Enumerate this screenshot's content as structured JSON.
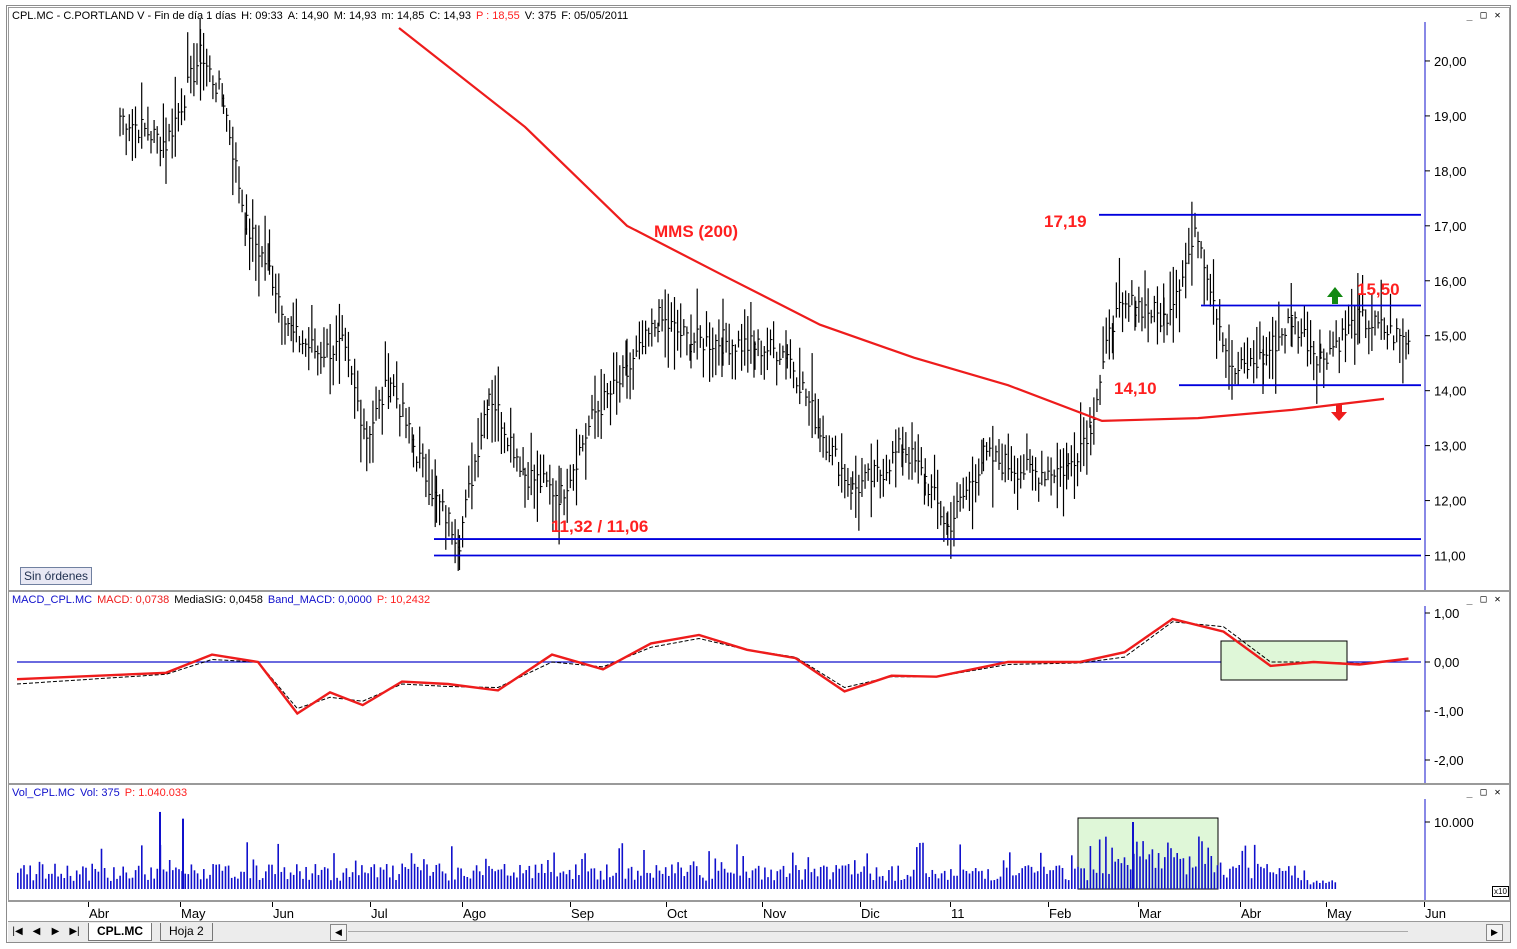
{
  "price_pane": {
    "header": {
      "symbol": "CPL.MC - C.PORTLAND V - Fin de día 1 días",
      "h": "H: 09:33",
      "a": "A: 14,90",
      "m": "M: 14,93",
      "mm": "m: 14,85",
      "c": "C: 14,93",
      "p": "P : 18,55",
      "v": "V: 375",
      "f": "F: 05/05/2011"
    },
    "window_controls": [
      "_",
      "□",
      "✕"
    ],
    "sin_ordenes": "Sin órdenes"
  },
  "macd_pane": {
    "header": {
      "name": "MACD_CPL.MC",
      "macd": "MACD: 0,0738",
      "mediasig": "MediaSIG: 0,0458",
      "band": "Band_MACD: 0,0000",
      "p": "P: 10,2432"
    },
    "window_controls": [
      "_",
      "□",
      "✕"
    ]
  },
  "vol_pane": {
    "header": {
      "name": "Vol_CPL.MC",
      "vol": "Vol: 375",
      "p": "P: 1.040.033"
    },
    "window_controls": [
      "_",
      "□",
      "✕"
    ],
    "scale_note": "x10"
  },
  "x_axis_labels": [
    "Abr",
    "May",
    "Jun",
    "Jul",
    "Ago",
    "Sep",
    "Oct",
    "Nov",
    "Dic",
    "11",
    "Feb",
    "Mar",
    "Abr",
    "May",
    "Jun"
  ],
  "bottom_bar": {
    "tabs": [
      "CPL.MC",
      "Hoja 2"
    ],
    "nav": [
      "|◀",
      "◀",
      "▶",
      "▶|"
    ]
  },
  "colors": {
    "price_bar": "#000000",
    "mms_line": "#ee1c1c",
    "level_line": "#0000dd",
    "annotation_text": "#ff2020",
    "macd_line": "#ee1c1c",
    "signal_line": "#000000",
    "volume_bar": "#1010cc",
    "highlight_fill": "#dff7d8",
    "arrow_up": "#118811",
    "arrow_down": "#ee1c1c"
  },
  "chart_data": [
    {
      "type": "bar",
      "subtype": "ohlc",
      "x_range": [
        "Abr 2010",
        "Jun 2011"
      ],
      "ylim": [
        10.5,
        20.8
      ],
      "yticks": [
        "20,00",
        "19,00",
        "18,00",
        "17,00",
        "16,00",
        "15,00",
        "14,00",
        "13,00",
        "12,00",
        "11,00"
      ],
      "close_path": [
        [
          "Abr",
          19.0
        ],
        [
          "Abr",
          18.5
        ],
        [
          "May",
          20.1
        ],
        [
          "May",
          19.3
        ],
        [
          "May",
          17.0
        ],
        [
          "May",
          16.2
        ],
        [
          "Jun",
          15.0
        ],
        [
          "Jun",
          14.7
        ],
        [
          "Jun",
          14.8
        ],
        [
          "Jun",
          13.2
        ],
        [
          "Jul",
          14.2
        ],
        [
          "Jul",
          13.0
        ],
        [
          "Jul",
          12.0
        ],
        [
          "Jul",
          11.3
        ],
        [
          "Ago",
          14.0
        ],
        [
          "Ago",
          12.5
        ],
        [
          "Ago",
          12.1
        ],
        [
          "Sep",
          13.6
        ],
        [
          "Sep",
          14.3
        ],
        [
          "Sep",
          15.3
        ],
        [
          "Oct",
          14.9
        ],
        [
          "Oct",
          14.9
        ],
        [
          "Oct",
          14.8
        ],
        [
          "Nov",
          14.7
        ],
        [
          "Nov",
          13.3
        ],
        [
          "Nov",
          12.2
        ],
        [
          "Dic",
          12.5
        ],
        [
          "Dic",
          13.0
        ],
        [
          "Dic",
          12.4
        ],
        [
          "Dic",
          11.5
        ],
        [
          "11",
          12.8
        ],
        [
          "11",
          12.5
        ],
        [
          "Feb",
          12.6
        ],
        [
          "Feb",
          13.4
        ],
        [
          "Feb",
          15.3
        ],
        [
          "Feb",
          15.6
        ],
        [
          "Mar",
          15.3
        ],
        [
          "Mar",
          16.9
        ],
        [
          "Mar",
          14.3
        ],
        [
          "Abr",
          14.6
        ],
        [
          "Abr",
          15.3
        ],
        [
          "Abr",
          14.6
        ],
        [
          "May",
          15.3
        ],
        [
          "May",
          14.9
        ]
      ],
      "overlay_series": [
        {
          "name": "MMS (200)",
          "values": [
            [
              "Jul",
              20.6
            ],
            [
              "Ago",
              18.8
            ],
            [
              "Sep",
              17.0
            ],
            [
              "Oct",
              16.1
            ],
            [
              "Nov",
              15.2
            ],
            [
              "Dic",
              14.6
            ],
            [
              "11",
              14.1
            ],
            [
              "Feb",
              13.45
            ],
            [
              "Mar",
              13.5
            ],
            [
              "Abr",
              13.65
            ],
            [
              "May",
              13.85
            ]
          ]
        }
      ],
      "levels": [
        {
          "label": "17,19",
          "value": 17.2,
          "from": "Feb",
          "to": "Jun"
        },
        {
          "label": "15,50",
          "value": 15.55,
          "from": "Mar",
          "to": "Jun"
        },
        {
          "label": "14,10",
          "value": 14.1,
          "from": "Mar",
          "to": "Jun"
        },
        {
          "label": "11,32 / 11,06",
          "value": 11.3,
          "from": "Jul",
          "to": "Jun"
        },
        {
          "label": "",
          "value": 11.0,
          "from": "Jul",
          "to": "Jun"
        }
      ],
      "annotations": [
        "MMS (200)",
        "17,19",
        "15,50",
        "14,10",
        "11,32 / 11,06"
      ]
    },
    {
      "type": "line",
      "ylim": [
        -2.5,
        1.1
      ],
      "yticks": [
        "1,00",
        "0,00",
        "-1,00",
        "-2,00"
      ],
      "series": [
        {
          "name": "MACD",
          "values": [
            [
              "Abr",
              -0.35
            ],
            [
              "Abr",
              -0.22
            ],
            [
              "May",
              0.15
            ],
            [
              "May",
              0.0
            ],
            [
              "Jun",
              -1.05
            ],
            [
              "Jun",
              -0.62
            ],
            [
              "Jun",
              -0.88
            ],
            [
              "Jul",
              -0.4
            ],
            [
              "Jul",
              -0.45
            ],
            [
              "Ago",
              -0.58
            ],
            [
              "Ago",
              0.15
            ],
            [
              "Sep",
              -0.15
            ],
            [
              "Sep",
              0.38
            ],
            [
              "Oct",
              0.55
            ],
            [
              "Oct",
              0.25
            ],
            [
              "Nov",
              0.08
            ],
            [
              "Nov",
              -0.6
            ],
            [
              "Dic",
              -0.28
            ],
            [
              "Dic",
              -0.3
            ],
            [
              "11",
              0.0
            ],
            [
              "Feb",
              0.0
            ],
            [
              "Feb",
              0.2
            ],
            [
              "Mar",
              0.88
            ],
            [
              "Mar",
              0.62
            ],
            [
              "Abr",
              -0.08
            ],
            [
              "Abr",
              0.0
            ],
            [
              "May",
              -0.05
            ],
            [
              "May",
              0.07
            ]
          ]
        },
        {
          "name": "MediaSIG",
          "values": [
            [
              "Abr",
              -0.45
            ],
            [
              "Abr",
              -0.25
            ],
            [
              "May",
              0.05
            ],
            [
              "May",
              0.0
            ],
            [
              "Jun",
              -0.95
            ],
            [
              "Jun",
              -0.72
            ],
            [
              "Jun",
              -0.8
            ],
            [
              "Jul",
              -0.45
            ],
            [
              "Jul",
              -0.5
            ],
            [
              "Ago",
              -0.52
            ],
            [
              "Ago",
              0.0
            ],
            [
              "Sep",
              -0.1
            ],
            [
              "Sep",
              0.3
            ],
            [
              "Oct",
              0.48
            ],
            [
              "Oct",
              0.25
            ],
            [
              "Nov",
              0.1
            ],
            [
              "Nov",
              -0.52
            ],
            [
              "Dic",
              -0.3
            ],
            [
              "Dic",
              -0.3
            ],
            [
              "11",
              -0.05
            ],
            [
              "Feb",
              -0.02
            ],
            [
              "Feb",
              0.1
            ],
            [
              "Mar",
              0.82
            ],
            [
              "Mar",
              0.72
            ],
            [
              "Abr",
              0.0
            ],
            [
              "Abr",
              0.0
            ],
            [
              "May",
              -0.03
            ],
            [
              "May",
              0.05
            ]
          ]
        },
        {
          "name": "Band_MACD",
          "values": [
            [
              "Abr",
              0.0
            ],
            [
              "Jun",
              0.0
            ]
          ]
        }
      ]
    },
    {
      "type": "bar",
      "ylim": [
        0,
        15000
      ],
      "yticks": [
        "10.000"
      ],
      "spikes": [
        [
          "May",
          11500
        ],
        [
          "May",
          10500
        ],
        [
          "Mar",
          10000
        ]
      ]
    }
  ]
}
